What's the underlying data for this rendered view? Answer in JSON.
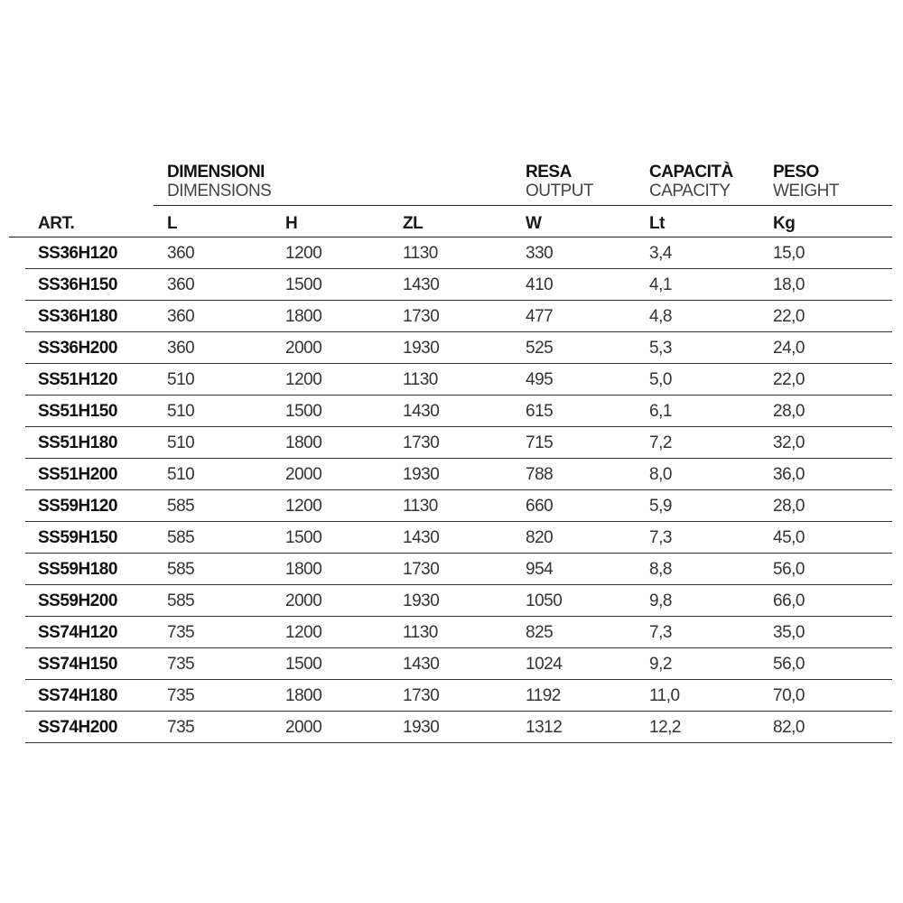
{
  "header": {
    "groups": [
      {
        "it": "DIMENSIONI",
        "en": "DIMENSIONS"
      },
      {
        "it": "RESA",
        "en": "OUTPUT"
      },
      {
        "it": "CAPACITÀ",
        "en": "CAPACITY"
      },
      {
        "it": "PESO",
        "en": "WEIGHT"
      }
    ],
    "columns": [
      "ART.",
      "L",
      "H",
      "ZL",
      "W",
      "Lt",
      "Kg"
    ]
  },
  "rows": [
    [
      "SS36H120",
      "360",
      "1200",
      "1130",
      "330",
      "3,4",
      "15,0"
    ],
    [
      "SS36H150",
      "360",
      "1500",
      "1430",
      "410",
      "4,1",
      "18,0"
    ],
    [
      "SS36H180",
      "360",
      "1800",
      "1730",
      "477",
      "4,8",
      "22,0"
    ],
    [
      "SS36H200",
      "360",
      "2000",
      "1930",
      "525",
      "5,3",
      "24,0"
    ],
    [
      "SS51H120",
      "510",
      "1200",
      "1130",
      "495",
      "5,0",
      "22,0"
    ],
    [
      "SS51H150",
      "510",
      "1500",
      "1430",
      "615",
      "6,1",
      "28,0"
    ],
    [
      "SS51H180",
      "510",
      "1800",
      "1730",
      "715",
      "7,2",
      "32,0"
    ],
    [
      "SS51H200",
      "510",
      "2000",
      "1930",
      "788",
      "8,0",
      "36,0"
    ],
    [
      "SS59H120",
      "585",
      "1200",
      "1130",
      "660",
      "5,9",
      "28,0"
    ],
    [
      "SS59H150",
      "585",
      "1500",
      "1430",
      "820",
      "7,3",
      "45,0"
    ],
    [
      "SS59H180",
      "585",
      "1800",
      "1730",
      "954",
      "8,8",
      "56,0"
    ],
    [
      "SS59H200",
      "585",
      "2000",
      "1930",
      "1050",
      "9,8",
      "66,0"
    ],
    [
      "SS74H120",
      "735",
      "1200",
      "1130",
      "825",
      "7,3",
      "35,0"
    ],
    [
      "SS74H150",
      "735",
      "1500",
      "1430",
      "1024",
      "9,2",
      "56,0"
    ],
    [
      "SS74H180",
      "735",
      "1800",
      "1730",
      "1192",
      "11,0",
      "70,0"
    ],
    [
      "SS74H200",
      "735",
      "2000",
      "1930",
      "1312",
      "12,2",
      "82,0"
    ]
  ]
}
